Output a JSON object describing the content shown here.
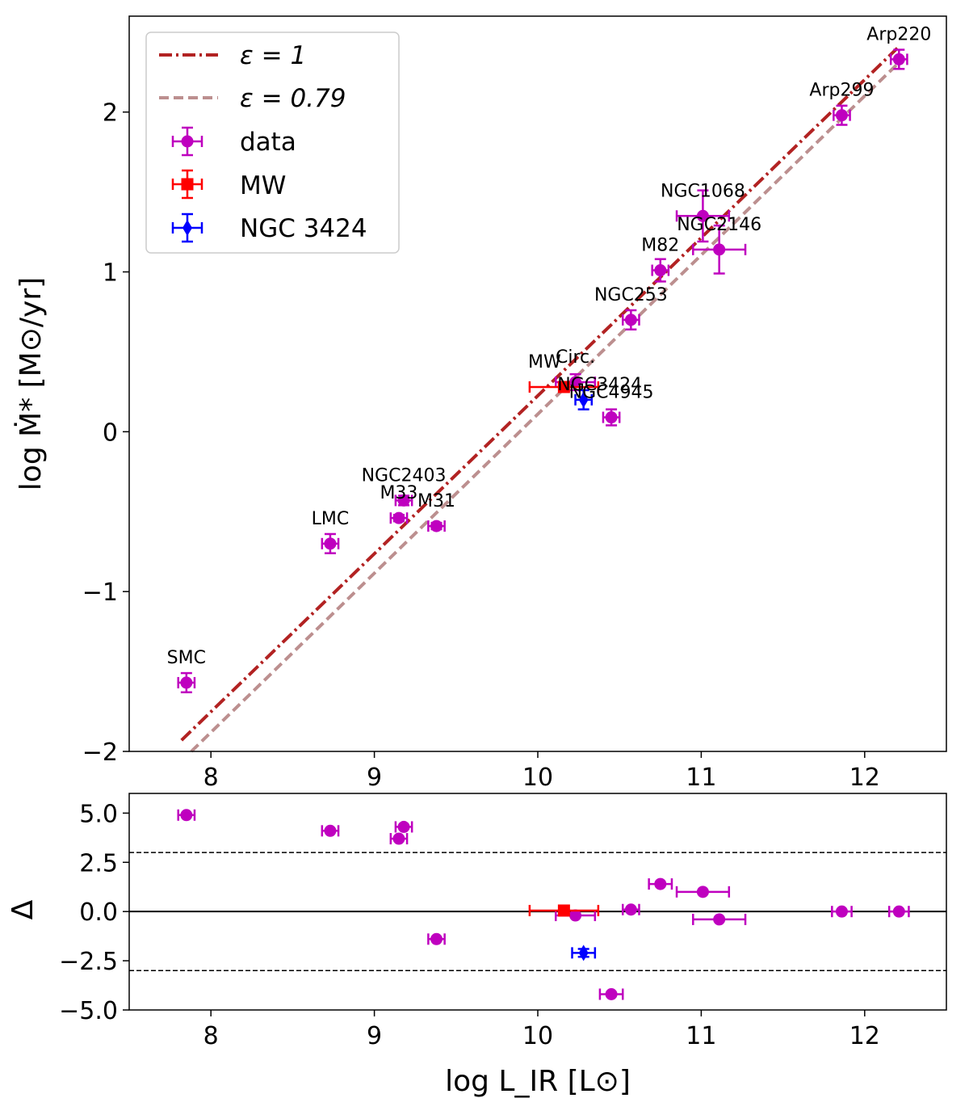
{
  "chart_data": [
    {
      "type": "scatter",
      "panel": "main",
      "xlim": [
        7.5,
        12.5
      ],
      "ylim": [
        -2,
        2.6
      ],
      "xticks": [
        "8",
        "9",
        "10",
        "11",
        "12"
      ],
      "yticks": [
        "-2",
        "-1",
        "0",
        "1",
        "2"
      ],
      "ylabel": "log Ṁ* [M⊙/yr]",
      "legend_position": "top-left",
      "legend": {
        "eps1": "ε = 1",
        "eps079": "ε = 0.79",
        "data": "data",
        "mw": "MW",
        "ngc3424": "NGC 3424"
      },
      "lines": [
        {
          "name": "eps1",
          "color": "#b22222",
          "style": "dashdot",
          "x": [
            7.82,
            12.2
          ],
          "y": [
            -1.93,
            2.4
          ]
        },
        {
          "name": "eps079",
          "color": "#bc8f8f",
          "style": "dashed",
          "x": [
            7.88,
            12.2
          ],
          "y": [
            -2.0,
            2.3
          ]
        }
      ],
      "points": [
        {
          "label": "SMC",
          "x": 7.85,
          "y": -1.57,
          "xerr": 0.05,
          "yerr": 0.06
        },
        {
          "label": "LMC",
          "x": 8.73,
          "y": -0.7,
          "xerr": 0.05,
          "yerr": 0.06
        },
        {
          "label": "M33",
          "x": 9.15,
          "y": -0.54,
          "xerr": 0.05,
          "yerr": 0.02
        },
        {
          "label": "NGC2403",
          "x": 9.18,
          "y": -0.43,
          "xerr": 0.05,
          "yerr": 0.03
        },
        {
          "label": "M31",
          "x": 9.38,
          "y": -0.59,
          "xerr": 0.05,
          "yerr": 0.02
        },
        {
          "label": "Circ.",
          "x": 10.23,
          "y": 0.31,
          "xerr": 0.12,
          "yerr": 0.05
        },
        {
          "label": "NGC4945",
          "x": 10.45,
          "y": 0.09,
          "xerr": 0.05,
          "yerr": 0.05
        },
        {
          "label": "NGC253",
          "x": 10.57,
          "y": 0.7,
          "xerr": 0.05,
          "yerr": 0.06
        },
        {
          "label": "M82",
          "x": 10.75,
          "y": 1.01,
          "xerr": 0.05,
          "yerr": 0.07
        },
        {
          "label": "NGC1068",
          "x": 11.01,
          "y": 1.35,
          "xerr": 0.16,
          "yerr": 0.16
        },
        {
          "label": "NGC2146",
          "x": 11.11,
          "y": 1.14,
          "xerr": 0.16,
          "yerr": 0.15
        },
        {
          "label": "Arp299",
          "x": 11.86,
          "y": 1.98,
          "xerr": 0.05,
          "yerr": 0.06
        },
        {
          "label": "Arp220",
          "x": 12.21,
          "y": 2.33,
          "xerr": 0.05,
          "yerr": 0.06
        }
      ],
      "mw": {
        "label": "MW",
        "x": 10.16,
        "y": 0.28,
        "xerr": 0.21,
        "yerr": 0.01
      },
      "ngc3424": {
        "label": "NGC3424",
        "x": 10.28,
        "y": 0.2,
        "xerr": 0.05,
        "yerr": 0.06
      }
    },
    {
      "type": "scatter",
      "panel": "residual",
      "xlim": [
        7.5,
        12.5
      ],
      "ylim": [
        -5,
        6
      ],
      "xticks": [
        "8",
        "9",
        "10",
        "11",
        "12"
      ],
      "yticks": [
        "5.0",
        "2.5",
        "0.0",
        "-2.5",
        "-5.0"
      ],
      "ylabel": "Δ",
      "xlabel": "log L_IR [L⊙]",
      "hlines": [
        {
          "y": 3,
          "style": "dashed"
        },
        {
          "y": 0,
          "style": "solid"
        },
        {
          "y": -3,
          "style": "dashed"
        }
      ],
      "points": [
        {
          "x": 7.85,
          "y": 4.9,
          "xerr": 0.05
        },
        {
          "x": 8.73,
          "y": 4.1,
          "xerr": 0.05
        },
        {
          "x": 9.18,
          "y": 4.3,
          "xerr": 0.05
        },
        {
          "x": 9.15,
          "y": 3.7,
          "xerr": 0.05
        },
        {
          "x": 9.38,
          "y": -1.4,
          "xerr": 0.05
        },
        {
          "x": 10.23,
          "y": -0.2,
          "xerr": 0.12
        },
        {
          "x": 10.45,
          "y": -4.2,
          "xerr": 0.07
        },
        {
          "x": 10.57,
          "y": 0.1,
          "xerr": 0.05
        },
        {
          "x": 10.75,
          "y": 1.4,
          "xerr": 0.07
        },
        {
          "x": 11.01,
          "y": 1.0,
          "xerr": 0.16
        },
        {
          "x": 11.11,
          "y": -0.4,
          "xerr": 0.16
        },
        {
          "x": 11.86,
          "y": 0.0,
          "xerr": 0.06
        },
        {
          "x": 12.21,
          "y": 0.0,
          "xerr": 0.06
        }
      ],
      "mw": {
        "x": 10.16,
        "y": 0.05,
        "xerr": 0.21
      },
      "ngc3424": {
        "x": 10.28,
        "y": -2.1,
        "xerr": 0.07,
        "yerr": 0.2
      }
    }
  ],
  "colors": {
    "data": "#bf00bf",
    "mw": "#ff0000",
    "ngc3424": "#0000ff",
    "eps1": "#b22222",
    "eps079": "#bc8f8f"
  }
}
